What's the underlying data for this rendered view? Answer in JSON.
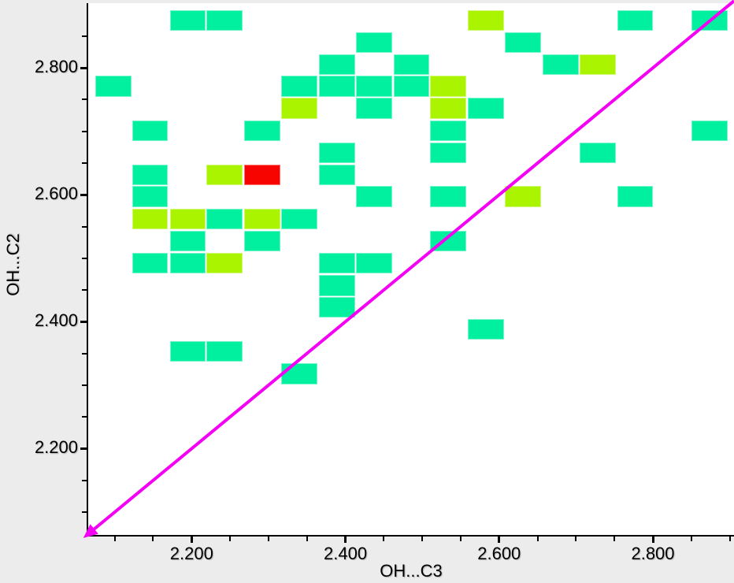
{
  "page": {
    "background": "#ececec",
    "plot_background": "#ffffff",
    "axis_color": "#000000"
  },
  "chart_data": {
    "type": "heatmap",
    "title": "",
    "xlabel": "OH...C3",
    "ylabel": "OH...C2",
    "xlim": [
      2.0655,
      2.9055
    ],
    "ylim": [
      2.064,
      2.902
    ],
    "x_bin": 0.0485,
    "y_bin": 0.0348,
    "grid": false,
    "legend": "none",
    "x_major_ticks": [
      {
        "value": 2.2,
        "label": "2.200"
      },
      {
        "value": 2.4,
        "label": "2.400"
      },
      {
        "value": 2.6,
        "label": "2.600"
      },
      {
        "value": 2.8,
        "label": "2.800"
      }
    ],
    "y_major_ticks": [
      {
        "value": 2.2,
        "label": "2.200"
      },
      {
        "value": 2.4,
        "label": "2.400"
      },
      {
        "value": 2.6,
        "label": "2.600"
      },
      {
        "value": 2.8,
        "label": "2.800"
      }
    ],
    "x_minor_ticks": [
      2.1,
      2.15,
      2.25,
      2.3,
      2.35,
      2.45,
      2.5,
      2.55,
      2.65,
      2.7,
      2.75,
      2.85,
      2.9
    ],
    "y_minor_ticks": [
      2.1,
      2.15,
      2.25,
      2.3,
      2.35,
      2.45,
      2.5,
      2.55,
      2.65,
      2.7,
      2.75,
      2.85
    ],
    "levels": {
      "low": "#00f0a0",
      "mid": "#aaf400",
      "high": "#f80400"
    },
    "identity_line": {
      "color": "#f400f4",
      "start": 2.0655,
      "end": 2.9055,
      "arrow_at": "start",
      "width": 4
    },
    "cells": [
      {
        "x": 2.195,
        "y": 2.875,
        "v": "low"
      },
      {
        "x": 2.243,
        "y": 2.875,
        "v": "low"
      },
      {
        "x": 2.583,
        "y": 2.875,
        "v": "mid"
      },
      {
        "x": 2.777,
        "y": 2.875,
        "v": "low"
      },
      {
        "x": 2.874,
        "y": 2.875,
        "v": "low"
      },
      {
        "x": 2.437,
        "y": 2.84,
        "v": "low"
      },
      {
        "x": 2.631,
        "y": 2.84,
        "v": "low"
      },
      {
        "x": 2.389,
        "y": 2.805,
        "v": "low"
      },
      {
        "x": 2.486,
        "y": 2.805,
        "v": "low"
      },
      {
        "x": 2.68,
        "y": 2.805,
        "v": "low"
      },
      {
        "x": 2.728,
        "y": 2.805,
        "v": "mid"
      },
      {
        "x": 2.098,
        "y": 2.771,
        "v": "low"
      },
      {
        "x": 2.34,
        "y": 2.771,
        "v": "low"
      },
      {
        "x": 2.389,
        "y": 2.771,
        "v": "low"
      },
      {
        "x": 2.437,
        "y": 2.771,
        "v": "low"
      },
      {
        "x": 2.486,
        "y": 2.771,
        "v": "low"
      },
      {
        "x": 2.534,
        "y": 2.771,
        "v": "mid"
      },
      {
        "x": 2.34,
        "y": 2.736,
        "v": "mid"
      },
      {
        "x": 2.437,
        "y": 2.736,
        "v": "low"
      },
      {
        "x": 2.534,
        "y": 2.736,
        "v": "mid"
      },
      {
        "x": 2.583,
        "y": 2.736,
        "v": "low"
      },
      {
        "x": 2.146,
        "y": 2.701,
        "v": "low"
      },
      {
        "x": 2.292,
        "y": 2.701,
        "v": "low"
      },
      {
        "x": 2.534,
        "y": 2.701,
        "v": "low"
      },
      {
        "x": 2.874,
        "y": 2.701,
        "v": "low"
      },
      {
        "x": 2.389,
        "y": 2.666,
        "v": "low"
      },
      {
        "x": 2.534,
        "y": 2.666,
        "v": "low"
      },
      {
        "x": 2.728,
        "y": 2.666,
        "v": "low"
      },
      {
        "x": 2.146,
        "y": 2.631,
        "v": "low"
      },
      {
        "x": 2.243,
        "y": 2.631,
        "v": "mid"
      },
      {
        "x": 2.292,
        "y": 2.631,
        "v": "high"
      },
      {
        "x": 2.389,
        "y": 2.631,
        "v": "low"
      },
      {
        "x": 2.146,
        "y": 2.597,
        "v": "low"
      },
      {
        "x": 2.437,
        "y": 2.597,
        "v": "low"
      },
      {
        "x": 2.534,
        "y": 2.597,
        "v": "low"
      },
      {
        "x": 2.631,
        "y": 2.597,
        "v": "mid"
      },
      {
        "x": 2.777,
        "y": 2.597,
        "v": "low"
      },
      {
        "x": 2.146,
        "y": 2.562,
        "v": "mid"
      },
      {
        "x": 2.195,
        "y": 2.562,
        "v": "mid"
      },
      {
        "x": 2.243,
        "y": 2.562,
        "v": "low"
      },
      {
        "x": 2.292,
        "y": 2.562,
        "v": "mid"
      },
      {
        "x": 2.34,
        "y": 2.562,
        "v": "low"
      },
      {
        "x": 2.195,
        "y": 2.527,
        "v": "low"
      },
      {
        "x": 2.292,
        "y": 2.527,
        "v": "low"
      },
      {
        "x": 2.534,
        "y": 2.527,
        "v": "low"
      },
      {
        "x": 2.146,
        "y": 2.492,
        "v": "low"
      },
      {
        "x": 2.195,
        "y": 2.492,
        "v": "low"
      },
      {
        "x": 2.243,
        "y": 2.492,
        "v": "mid"
      },
      {
        "x": 2.389,
        "y": 2.492,
        "v": "low"
      },
      {
        "x": 2.437,
        "y": 2.492,
        "v": "low"
      },
      {
        "x": 2.389,
        "y": 2.457,
        "v": "low"
      },
      {
        "x": 2.389,
        "y": 2.423,
        "v": "low"
      },
      {
        "x": 2.583,
        "y": 2.388,
        "v": "low"
      },
      {
        "x": 2.195,
        "y": 2.353,
        "v": "low"
      },
      {
        "x": 2.243,
        "y": 2.353,
        "v": "low"
      },
      {
        "x": 2.34,
        "y": 2.318,
        "v": "low"
      }
    ]
  }
}
